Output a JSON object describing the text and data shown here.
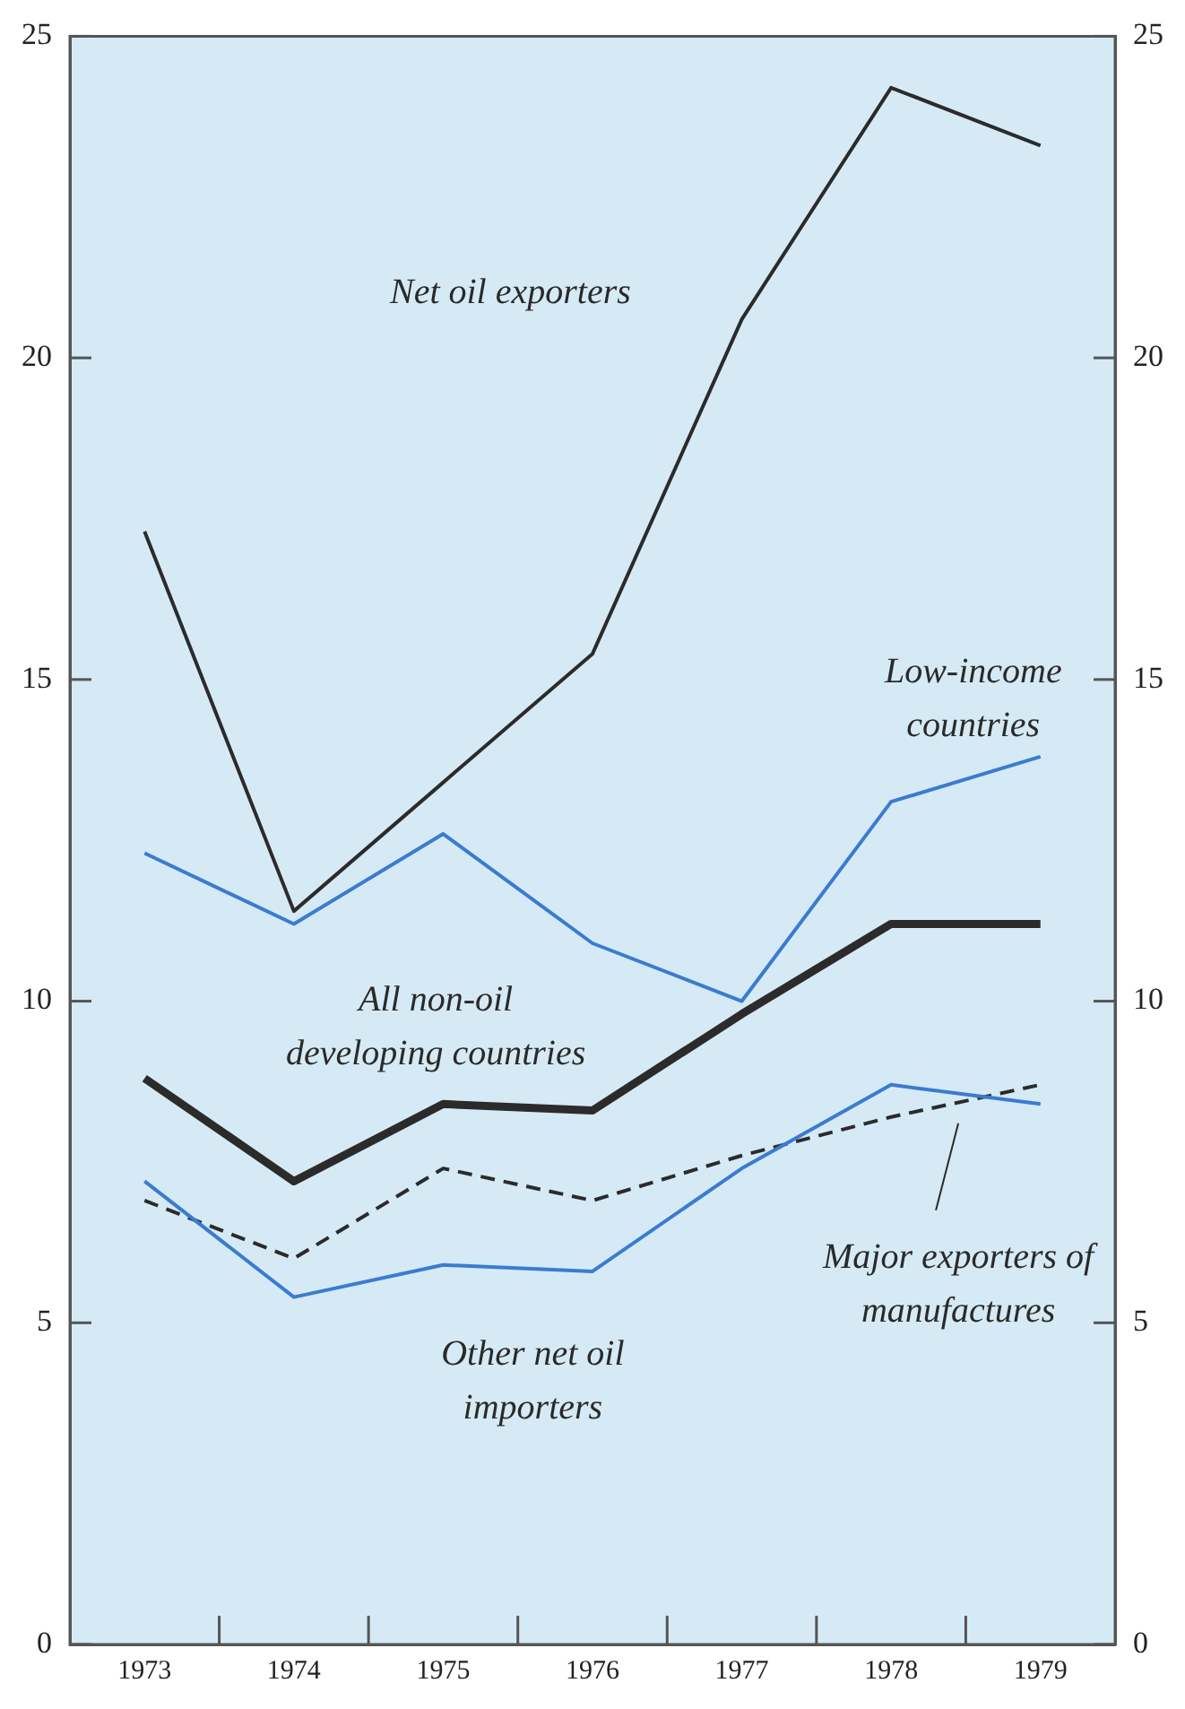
{
  "chart_data": {
    "type": "line",
    "categories": [
      "1973",
      "1974",
      "1975",
      "1976",
      "1977",
      "1978",
      "1979"
    ],
    "series": [
      {
        "name": "Net oil exporters",
        "color": "#2b2b2b",
        "values": [
          17.3,
          11.4,
          13.4,
          15.4,
          20.6,
          24.2,
          23.3
        ]
      },
      {
        "name": "Low-income countries",
        "color": "#3b7bd0",
        "values": [
          12.3,
          11.2,
          12.6,
          10.9,
          10.0,
          13.1,
          13.8
        ]
      },
      {
        "name": "All non-oil developing countries",
        "color": "#2b2b2b",
        "values": [
          8.8,
          7.2,
          8.4,
          8.3,
          9.8,
          11.2,
          11.2
        ]
      },
      {
        "name": "Other net oil importers",
        "color": "#3b7bd0",
        "values": [
          7.2,
          5.4,
          5.9,
          5.8,
          7.4,
          8.7,
          8.4
        ]
      },
      {
        "name": "Major exporters of manufactures",
        "color": "#2b2b2b",
        "line_style": "dashed",
        "values": [
          6.9,
          6.0,
          7.4,
          6.9,
          7.6,
          8.2,
          8.7
        ]
      }
    ],
    "ylim": [
      0,
      25
    ],
    "yticks": [
      0,
      5,
      10,
      15,
      20,
      25
    ],
    "y2lim": [
      0,
      25
    ],
    "y2ticks": [
      0,
      5,
      10,
      15,
      20,
      25
    ],
    "grid": false,
    "legend": false,
    "marker": "none",
    "line_style": "solid"
  }
}
